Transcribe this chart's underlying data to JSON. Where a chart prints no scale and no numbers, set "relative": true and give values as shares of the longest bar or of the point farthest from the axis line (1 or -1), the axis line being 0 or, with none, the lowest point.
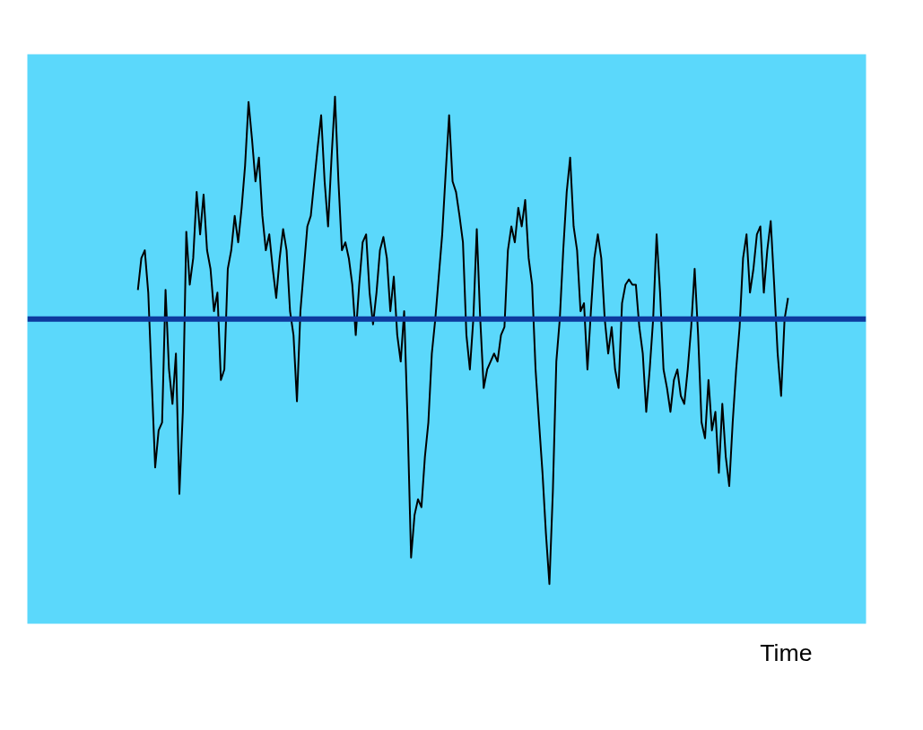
{
  "chart_data": {
    "type": "line",
    "relative": true,
    "xlabel": "Time",
    "grid": false,
    "marker": "none",
    "line_style": "solid",
    "categories": [
      null,
      null,
      null,
      null,
      null,
      null,
      null,
      null,
      null,
      null,
      null,
      null,
      null,
      null,
      null,
      null,
      null,
      null,
      null,
      null,
      null,
      null,
      null,
      null,
      null,
      null,
      null,
      null,
      null,
      null,
      null,
      null,
      null,
      null,
      null,
      null,
      null,
      null,
      null,
      null,
      null,
      null,
      null,
      null,
      null,
      null,
      null,
      null,
      null,
      null,
      null,
      null,
      null,
      null,
      null,
      null,
      null,
      null,
      null,
      null,
      null,
      null,
      null,
      null,
      null,
      null,
      null,
      null,
      null,
      null,
      null,
      null,
      null,
      null,
      null,
      null,
      null,
      null,
      null,
      null,
      null,
      null,
      null,
      null,
      null,
      null,
      null,
      null,
      null,
      null,
      null,
      null,
      null,
      null,
      null,
      null,
      null,
      null,
      null,
      null,
      null,
      null,
      null,
      null,
      null,
      null,
      null,
      null,
      null,
      null,
      null,
      null,
      null,
      null,
      null,
      null,
      null,
      null,
      null,
      null,
      null,
      null,
      null,
      null,
      null,
      null,
      null,
      null,
      null,
      null,
      null,
      null,
      null,
      null,
      null,
      null,
      null,
      null,
      null,
      null,
      null,
      null,
      null,
      null,
      null,
      null,
      null,
      null,
      null,
      null,
      null,
      null,
      null,
      null,
      null,
      null,
      null,
      null,
      null,
      null,
      null,
      null,
      null,
      null,
      null,
      null,
      null,
      null,
      null,
      null,
      null,
      null,
      null,
      null,
      null,
      null,
      null,
      null,
      null,
      null,
      null,
      null,
      null,
      null,
      null,
      null,
      null,
      null,
      null
    ],
    "series": [
      {
        "color": "#000000",
        "values": [
          0.11,
          0.23,
          0.26,
          0.1,
          -0.23,
          -0.56,
          -0.42,
          -0.39,
          0.11,
          -0.19,
          -0.32,
          -0.13,
          -0.66,
          -0.35,
          0.33,
          0.13,
          0.23,
          0.48,
          0.32,
          0.47,
          0.26,
          0.19,
          0.03,
          0.1,
          -0.23,
          -0.19,
          0.19,
          0.26,
          0.39,
          0.29,
          0.42,
          0.58,
          0.82,
          0.68,
          0.52,
          0.61,
          0.39,
          0.26,
          0.32,
          0.19,
          0.08,
          0.23,
          0.34,
          0.26,
          0.03,
          -0.06,
          -0.31,
          0.03,
          0.19,
          0.35,
          0.39,
          0.52,
          0.65,
          0.77,
          0.52,
          0.35,
          0.61,
          0.84,
          0.52,
          0.26,
          0.29,
          0.23,
          0.13,
          -0.06,
          0.13,
          0.29,
          0.32,
          0.1,
          -0.02,
          0.1,
          0.26,
          0.31,
          0.23,
          0.03,
          0.16,
          -0.06,
          -0.16,
          0.03,
          -0.39,
          -0.9,
          -0.74,
          -0.68,
          -0.71,
          -0.52,
          -0.39,
          -0.13,
          0,
          0.16,
          0.32,
          0.55,
          0.77,
          0.52,
          0.48,
          0.39,
          0.29,
          -0.06,
          -0.19,
          0,
          0.34,
          0,
          -0.26,
          -0.19,
          -0.16,
          -0.13,
          -0.16,
          -0.06,
          -0.03,
          0.26,
          0.35,
          0.29,
          0.42,
          0.35,
          0.45,
          0.23,
          0.13,
          -0.19,
          -0.39,
          -0.58,
          -0.81,
          -1,
          -0.65,
          -0.16,
          0,
          0.26,
          0.48,
          0.61,
          0.35,
          0.26,
          0.03,
          0.06,
          -0.19,
          0.03,
          0.23,
          0.32,
          0.23,
          0,
          -0.13,
          -0.03,
          -0.19,
          -0.26,
          0.06,
          0.13,
          0.15,
          0.13,
          0.13,
          -0.03,
          -0.13,
          -0.35,
          -0.19,
          0,
          0.32,
          0.1,
          -0.19,
          -0.26,
          -0.35,
          -0.23,
          -0.19,
          -0.29,
          -0.32,
          -0.19,
          -0.03,
          0.19,
          -0.06,
          -0.39,
          -0.45,
          -0.23,
          -0.42,
          -0.35,
          -0.58,
          -0.32,
          -0.52,
          -0.63,
          -0.39,
          -0.19,
          -0.03,
          0.23,
          0.32,
          0.1,
          0.19,
          0.32,
          0.35,
          0.1,
          0.26,
          0.37,
          0.13,
          -0.13,
          -0.29,
          0,
          0.08
        ]
      }
    ],
    "ref_lines": [
      {
        "axis": "y",
        "value": 0,
        "color": "#0d3a9e",
        "line_style": "solid"
      }
    ]
  }
}
